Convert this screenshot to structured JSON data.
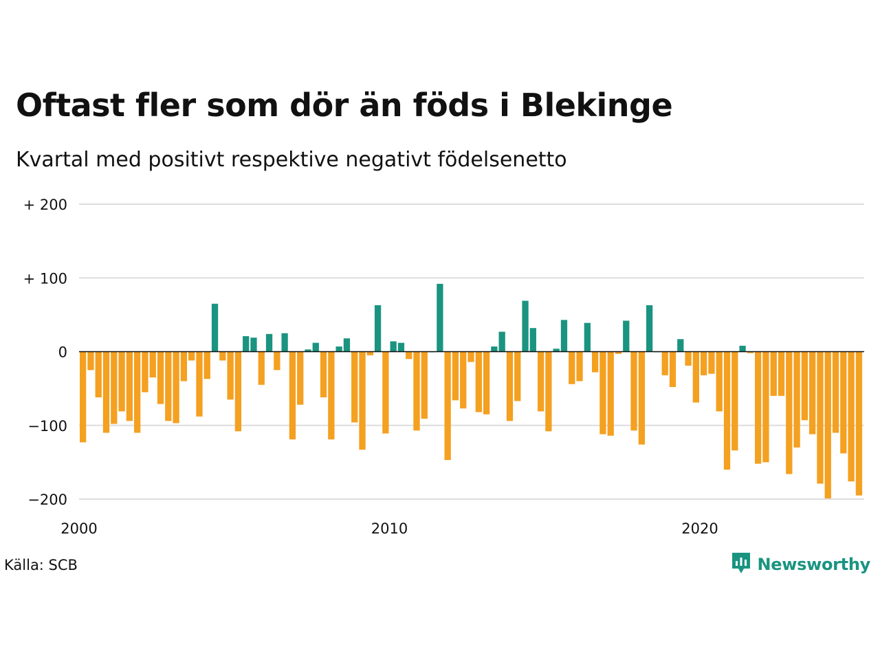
{
  "title": "Oftast fler som dör än föds i Blekinge",
  "subtitle": "Kvartal med positivt respektive negativt födelsenetto",
  "source": "Källa: SCB",
  "brand": "Newsworthy",
  "icons": {
    "logo": "newsworthy-chart-bubble-icon"
  },
  "colors": {
    "positive": "#1a9480",
    "negative": "#f4a020",
    "grid": "#dddddd",
    "baseline": "#111111"
  },
  "chart_data": {
    "type": "bar",
    "start_year": 2000,
    "quarters_per_year": 4,
    "ylim": [
      -200,
      200
    ],
    "yticks": [
      {
        "value": 200,
        "label": "+ 200"
      },
      {
        "value": 100,
        "label": "+ 100"
      },
      {
        "value": 0,
        "label": "0"
      },
      {
        "value": -100,
        "label": "−100"
      },
      {
        "value": -200,
        "label": "−200"
      }
    ],
    "xticks": [
      {
        "value": 2000,
        "label": "2000"
      },
      {
        "value": 2010,
        "label": "2010"
      },
      {
        "value": 2020,
        "label": "2020"
      }
    ],
    "values": [
      -123,
      -25,
      -62,
      -110,
      -98,
      -81,
      -94,
      -110,
      -55,
      -35,
      -71,
      -94,
      -97,
      -40,
      -12,
      -88,
      -37,
      65,
      -12,
      -65,
      -108,
      21,
      19,
      -45,
      24,
      -25,
      25,
      -119,
      -72,
      3,
      12,
      -62,
      -119,
      7,
      18,
      -96,
      -133,
      -5,
      63,
      -111,
      14,
      12,
      -10,
      -107,
      -91,
      0,
      92,
      -147,
      -66,
      -77,
      -14,
      -82,
      -85,
      7,
      27,
      -94,
      -67,
      69,
      32,
      -81,
      -108,
      4,
      43,
      -44,
      -40,
      39,
      -28,
      -112,
      -114,
      -3,
      42,
      -107,
      -126,
      63,
      0,
      -32,
      -48,
      17,
      -19,
      -69,
      -32,
      -30,
      -81,
      -160,
      -134,
      8,
      -2,
      -152,
      -150,
      -60,
      -60,
      -166,
      -130,
      -93,
      -112,
      -179,
      -199,
      -110,
      -138,
      -176,
      -195
    ]
  }
}
